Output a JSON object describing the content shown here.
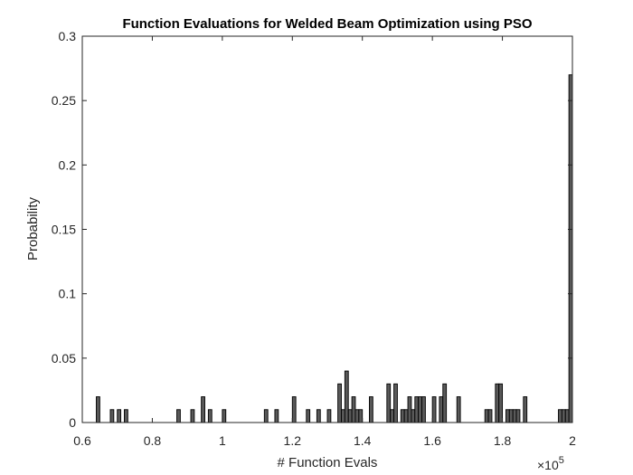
{
  "chart_data": {
    "type": "bar",
    "title": "Function Evaluations for Welded Beam Optimization using PSO",
    "xlabel": "# Function Evals",
    "ylabel": "Probability",
    "x_exponent_base": "×10",
    "x_exponent_power": "5",
    "xlim": [
      0.6,
      2.0
    ],
    "ylim": [
      0,
      0.3
    ],
    "xticks": [
      0.6,
      0.8,
      1.0,
      1.2,
      1.4,
      1.6,
      1.8,
      2.0
    ],
    "xtick_labels": [
      "0.6",
      "0.8",
      "1",
      "1.2",
      "1.4",
      "1.6",
      "1.8",
      "2"
    ],
    "yticks": [
      0,
      0.05,
      0.1,
      0.15,
      0.2,
      0.25,
      0.3
    ],
    "ytick_labels": [
      "0",
      "0.05",
      "0.1",
      "0.15",
      "0.2",
      "0.25",
      "0.3"
    ],
    "bin_width": 0.01,
    "x": [
      0.645,
      0.685,
      0.705,
      0.725,
      0.875,
      0.915,
      0.945,
      0.965,
      1.005,
      1.125,
      1.155,
      1.205,
      1.245,
      1.275,
      1.305,
      1.335,
      1.345,
      1.355,
      1.365,
      1.375,
      1.385,
      1.395,
      1.425,
      1.475,
      1.485,
      1.495,
      1.515,
      1.525,
      1.535,
      1.545,
      1.555,
      1.565,
      1.575,
      1.605,
      1.625,
      1.635,
      1.675,
      1.755,
      1.765,
      1.785,
      1.795,
      1.815,
      1.825,
      1.835,
      1.845,
      1.865,
      1.965,
      1.975,
      1.985,
      1.995
    ],
    "values": [
      0.02,
      0.01,
      0.01,
      0.01,
      0.01,
      0.01,
      0.02,
      0.01,
      0.01,
      0.01,
      0.01,
      0.02,
      0.01,
      0.01,
      0.01,
      0.03,
      0.01,
      0.04,
      0.01,
      0.02,
      0.01,
      0.01,
      0.02,
      0.03,
      0.01,
      0.03,
      0.01,
      0.01,
      0.02,
      0.01,
      0.02,
      0.02,
      0.02,
      0.02,
      0.02,
      0.03,
      0.02,
      0.01,
      0.01,
      0.03,
      0.03,
      0.01,
      0.01,
      0.01,
      0.01,
      0.02,
      0.01,
      0.01,
      0.01,
      0.27
    ],
    "bar_color": "#595959",
    "bar_edge_color": "#000000",
    "grid": false,
    "box": true
  }
}
